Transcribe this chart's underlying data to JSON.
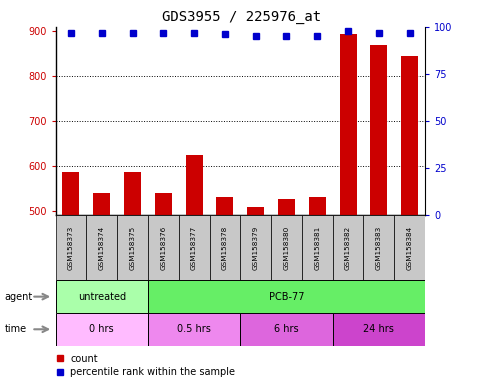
{
  "title": "GDS3955 / 225976_at",
  "samples": [
    "GSM158373",
    "GSM158374",
    "GSM158375",
    "GSM158376",
    "GSM158377",
    "GSM158378",
    "GSM158379",
    "GSM158380",
    "GSM158381",
    "GSM158382",
    "GSM158383",
    "GSM158384"
  ],
  "counts": [
    585,
    540,
    585,
    540,
    625,
    530,
    507,
    525,
    530,
    895,
    870,
    845
  ],
  "percentile_ranks": [
    97,
    97,
    97,
    97,
    97,
    96,
    95,
    95,
    95,
    98,
    97,
    97
  ],
  "ylim_left": [
    490,
    910
  ],
  "ylim_right": [
    0,
    100
  ],
  "yticks_left": [
    500,
    600,
    700,
    800,
    900
  ],
  "yticks_right": [
    0,
    25,
    50,
    75,
    100
  ],
  "bar_color": "#cc0000",
  "dot_color": "#0000cc",
  "agent_groups": [
    {
      "label": "untreated",
      "start": 0,
      "end": 3,
      "color": "#aaffaa"
    },
    {
      "label": "PCB-77",
      "start": 3,
      "end": 12,
      "color": "#66ee66"
    }
  ],
  "time_groups": [
    {
      "label": "0 hrs",
      "start": 0,
      "end": 3,
      "color": "#ffbbff"
    },
    {
      "label": "0.5 hrs",
      "start": 3,
      "end": 6,
      "color": "#ee88ee"
    },
    {
      "label": "6 hrs",
      "start": 6,
      "end": 9,
      "color": "#dd66dd"
    },
    {
      "label": "24 hrs",
      "start": 9,
      "end": 12,
      "color": "#cc44cc"
    }
  ],
  "background_color": "#ffffff",
  "grid_color": "#000000",
  "tick_label_color_left": "#cc0000",
  "tick_label_color_right": "#0000cc",
  "title_fontsize": 10,
  "bar_fontsize": 5.5,
  "row_fontsize": 7
}
